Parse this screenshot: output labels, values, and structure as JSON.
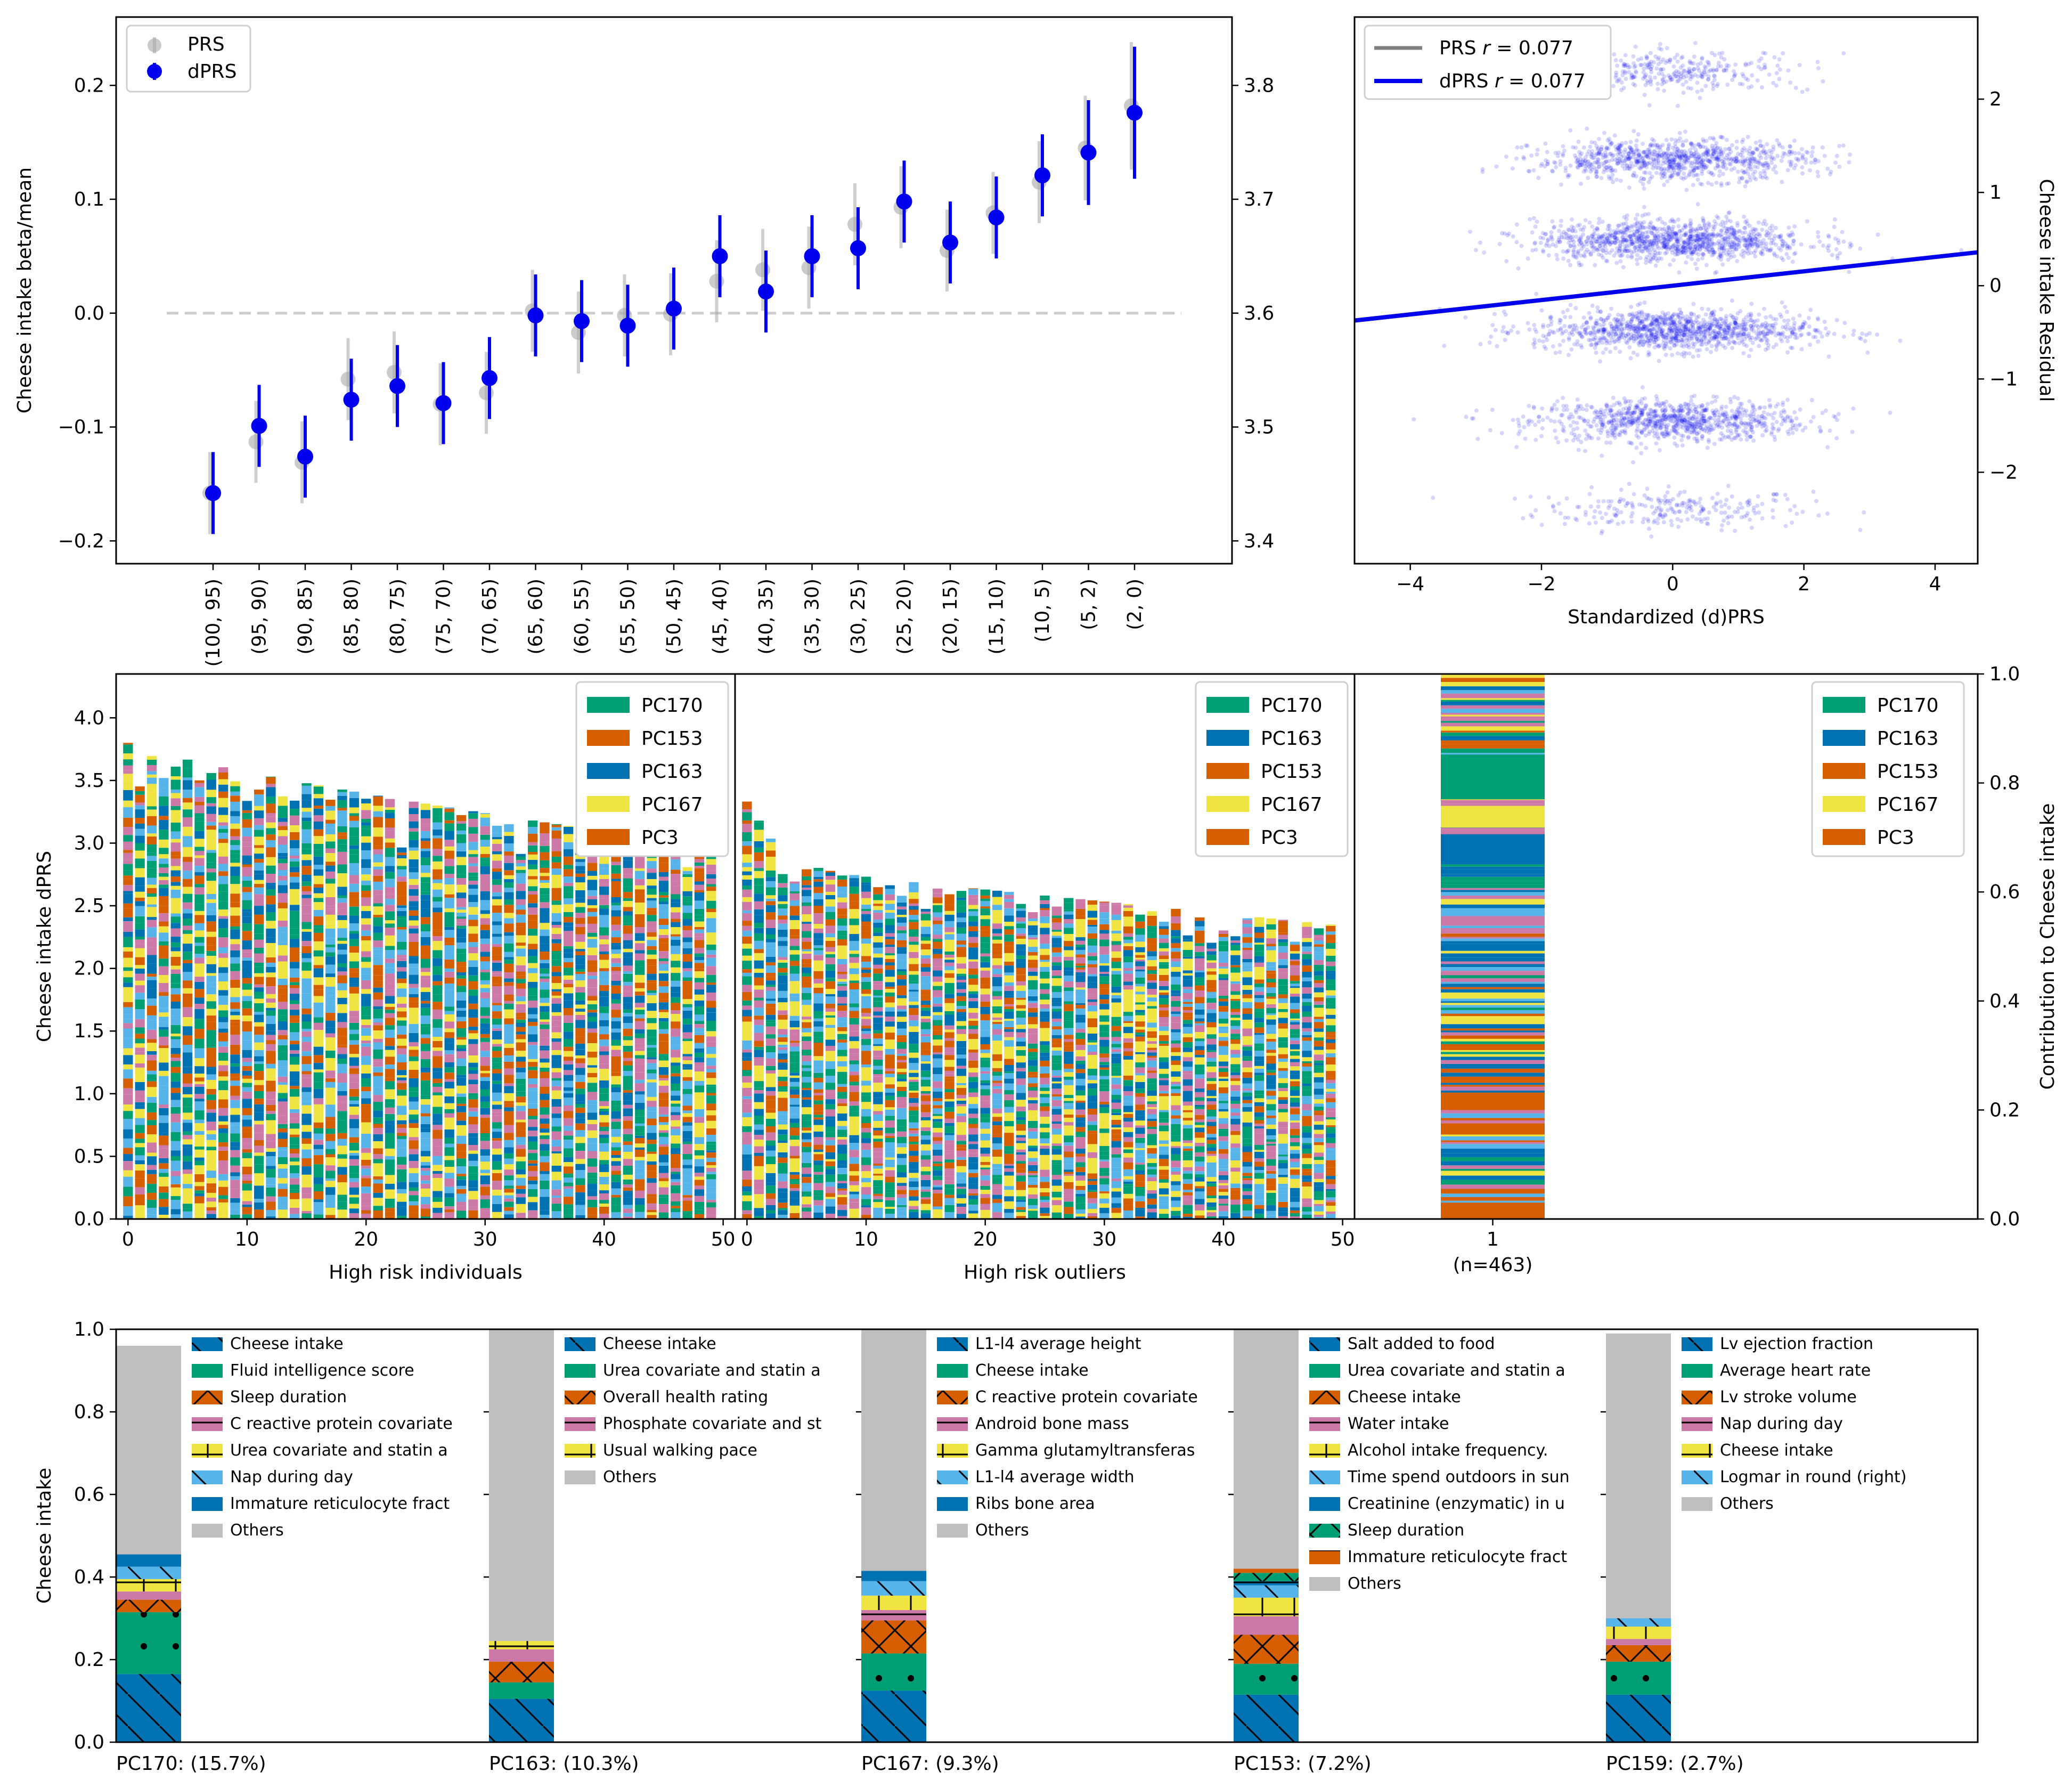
{
  "colors": {
    "green": "#009E73",
    "orange": "#D55E00",
    "blue": "#0072B2",
    "yellow": "#F0E442",
    "pink": "#CC79A7",
    "sky": "#56B4E9",
    "grey": "#BFBFBF",
    "dprs": "#0000EE",
    "prs": "#A9A9A9"
  },
  "chart_data": [
    {
      "type": "scatter",
      "ylabel": "Cheese intake beta/mean",
      "ylim": [
        -0.22,
        0.26
      ],
      "yticks": [
        "−0.2",
        "−0.1",
        "0.0",
        "0.1",
        "0.2"
      ],
      "right_ticks": [
        "3.4",
        "3.5",
        "3.6",
        "3.7",
        "3.8"
      ],
      "legend": [
        "PRS",
        "dPRS"
      ],
      "categories": [
        "(100, 95)",
        "(95, 90)",
        "(90, 85)",
        "(85, 80)",
        "(80, 75)",
        "(75, 70)",
        "(70, 65)",
        "(65, 60)",
        "(60, 55)",
        "(55, 50)",
        "(50, 45)",
        "(45, 40)",
        "(40, 35)",
        "(35, 30)",
        "(30, 25)",
        "(25, 20)",
        "(20, 15)",
        "(15, 10)",
        "(10, 5)",
        "(5, 2)",
        "(2, 0)"
      ],
      "series": [
        {
          "name": "PRS",
          "values": [
            -0.158,
            -0.113,
            -0.131,
            -0.058,
            -0.052,
            -0.08,
            -0.07,
            0.002,
            -0.017,
            -0.002,
            -0.001,
            0.028,
            0.038,
            0.04,
            0.078,
            0.093,
            0.055,
            0.088,
            0.115,
            0.145,
            0.182
          ],
          "err": [
            0.036,
            0.036,
            0.036,
            0.036,
            0.036,
            0.036,
            0.036,
            0.036,
            0.036,
            0.036,
            0.036,
            0.036,
            0.036,
            0.036,
            0.036,
            0.036,
            0.036,
            0.036,
            0.036,
            0.046,
            0.056
          ]
        },
        {
          "name": "dPRS",
          "values": [
            -0.158,
            -0.099,
            -0.126,
            -0.076,
            -0.064,
            -0.079,
            -0.057,
            -0.002,
            -0.007,
            -0.011,
            0.004,
            0.05,
            0.019,
            0.05,
            0.057,
            0.098,
            0.062,
            0.084,
            0.121,
            0.141,
            0.176
          ],
          "err": [
            0.036,
            0.036,
            0.036,
            0.036,
            0.036,
            0.036,
            0.036,
            0.036,
            0.036,
            0.036,
            0.036,
            0.036,
            0.036,
            0.036,
            0.036,
            0.036,
            0.036,
            0.036,
            0.036,
            0.046,
            0.058
          ]
        }
      ]
    },
    {
      "type": "scatter",
      "xlabel": "Standardized (d)PRS",
      "ylabel": "Cheese intake Residual",
      "xlim": [
        -4.85,
        4.65
      ],
      "ylim": [
        -2.98,
        2.88
      ],
      "xticks": [
        "−4",
        "−2",
        "0",
        "2",
        "4"
      ],
      "yticks": [
        "−2",
        "−1",
        "0",
        "1",
        "2"
      ],
      "legend": [
        {
          "name": "PRS",
          "r": "0.077"
        },
        {
          "name": "dPRS",
          "r": "0.077"
        }
      ],
      "point_bands_y": [
        -2.4,
        -1.45,
        -0.48,
        0.48,
        1.35,
        2.3
      ],
      "fit_line": {
        "slope": 0.077,
        "intercept": 0.0
      }
    },
    {
      "type": "bar",
      "stacked": true,
      "xlabel": "High risk individuals",
      "ylabel": "Cheese intake dPRS",
      "xlim": [
        -1,
        51
      ],
      "ylim": [
        0,
        4.35
      ],
      "xticks": [
        "0",
        "10",
        "20",
        "30",
        "40",
        "50"
      ],
      "yticks": [
        "0.0",
        "0.5",
        "1.0",
        "1.5",
        "2.0",
        "2.5",
        "3.0",
        "3.5",
        "4.0"
      ],
      "legend": [
        "PC170",
        "PC153",
        "PC163",
        "PC167",
        "PC3"
      ],
      "bar_count": 50,
      "totals_start": 3.8,
      "totals_end": 2.97
    },
    {
      "type": "bar",
      "stacked": true,
      "xlabel": "High risk outliers",
      "xlim": [
        -1,
        51
      ],
      "ylim": [
        0,
        4.35
      ],
      "xticks": [
        "0",
        "10",
        "20",
        "30",
        "40",
        "50"
      ],
      "legend": [
        "PC170",
        "PC163",
        "PC153",
        "PC167",
        "PC3"
      ],
      "bar_count": 50,
      "totals_start": 3.4,
      "totals_end": 2.35
    },
    {
      "type": "bar",
      "stacked": true,
      "ylabel": "Contribution to Cheese intake",
      "ylim": [
        0,
        1
      ],
      "yticks": [
        "0.0",
        "0.2",
        "0.4",
        "0.6",
        "0.8",
        "1.0"
      ],
      "category": "1",
      "n_label": "(n=463)",
      "legend": [
        "PC170",
        "PC163",
        "PC153",
        "PC167",
        "PC3"
      ]
    },
    {
      "type": "bar",
      "stacked": true,
      "ylabel": "Cheese intake",
      "ylim": [
        0,
        1
      ],
      "yticks": [
        "0.0",
        "0.2",
        "0.4",
        "0.6",
        "0.8",
        "1.0"
      ],
      "groups": [
        {
          "label": "PC170: (15.7%)",
          "values": [
            0.165,
            0.15,
            0.03,
            0.02,
            0.03,
            0.03,
            0.03,
            0.505
          ],
          "legend": [
            "Cheese intake",
            "Fluid intelligence score",
            "Sleep duration",
            "C reactive protein covariate",
            "Urea covariate and statin a",
            "Nap during day",
            "Immature reticulocyte fract",
            "Others"
          ]
        },
        {
          "label": "PC163: (10.3%)",
          "values": [
            0.105,
            0.04,
            0.05,
            0.03,
            0.02,
            0.755
          ],
          "legend": [
            "Cheese intake",
            "Urea covariate and statin a",
            "Overall health rating",
            "Phosphate covariate and st",
            "Usual walking pace",
            "Others"
          ]
        },
        {
          "label": "PC167: (9.3%)",
          "values": [
            0.125,
            0.09,
            0.08,
            0.025,
            0.035,
            0.035,
            0.025,
            0.585
          ],
          "legend": [
            "L1-l4 average height",
            "Cheese intake",
            "C reactive protein covariate",
            "Android bone mass",
            "Gamma glutamyltransferas",
            "L1-l4 average width",
            "Ribs bone area",
            "Others"
          ]
        },
        {
          "label": "PC153: (7.2%)",
          "values": [
            0.115,
            0.075,
            0.07,
            0.045,
            0.045,
            0.03,
            0.01,
            0.02,
            0.01,
            0.58
          ],
          "legend": [
            "Salt added to food",
            "Urea covariate and statin a",
            "Cheese intake",
            "Water intake",
            "Alcohol intake frequency.",
            "Time spend outdoors in sun",
            "Creatinine (enzymatic) in u",
            "Sleep duration",
            "Immature reticulocyte fract",
            "Others"
          ]
        },
        {
          "label": "PC159: (2.7%)",
          "values": [
            0.115,
            0.08,
            0.04,
            0.015,
            0.03,
            0.02,
            0.69
          ],
          "legend": [
            "Lv ejection fraction",
            "Average heart rate",
            "Lv stroke volume",
            "Nap during day",
            "Cheese intake",
            "Logmar in round (right)",
            "Others"
          ]
        }
      ]
    }
  ]
}
